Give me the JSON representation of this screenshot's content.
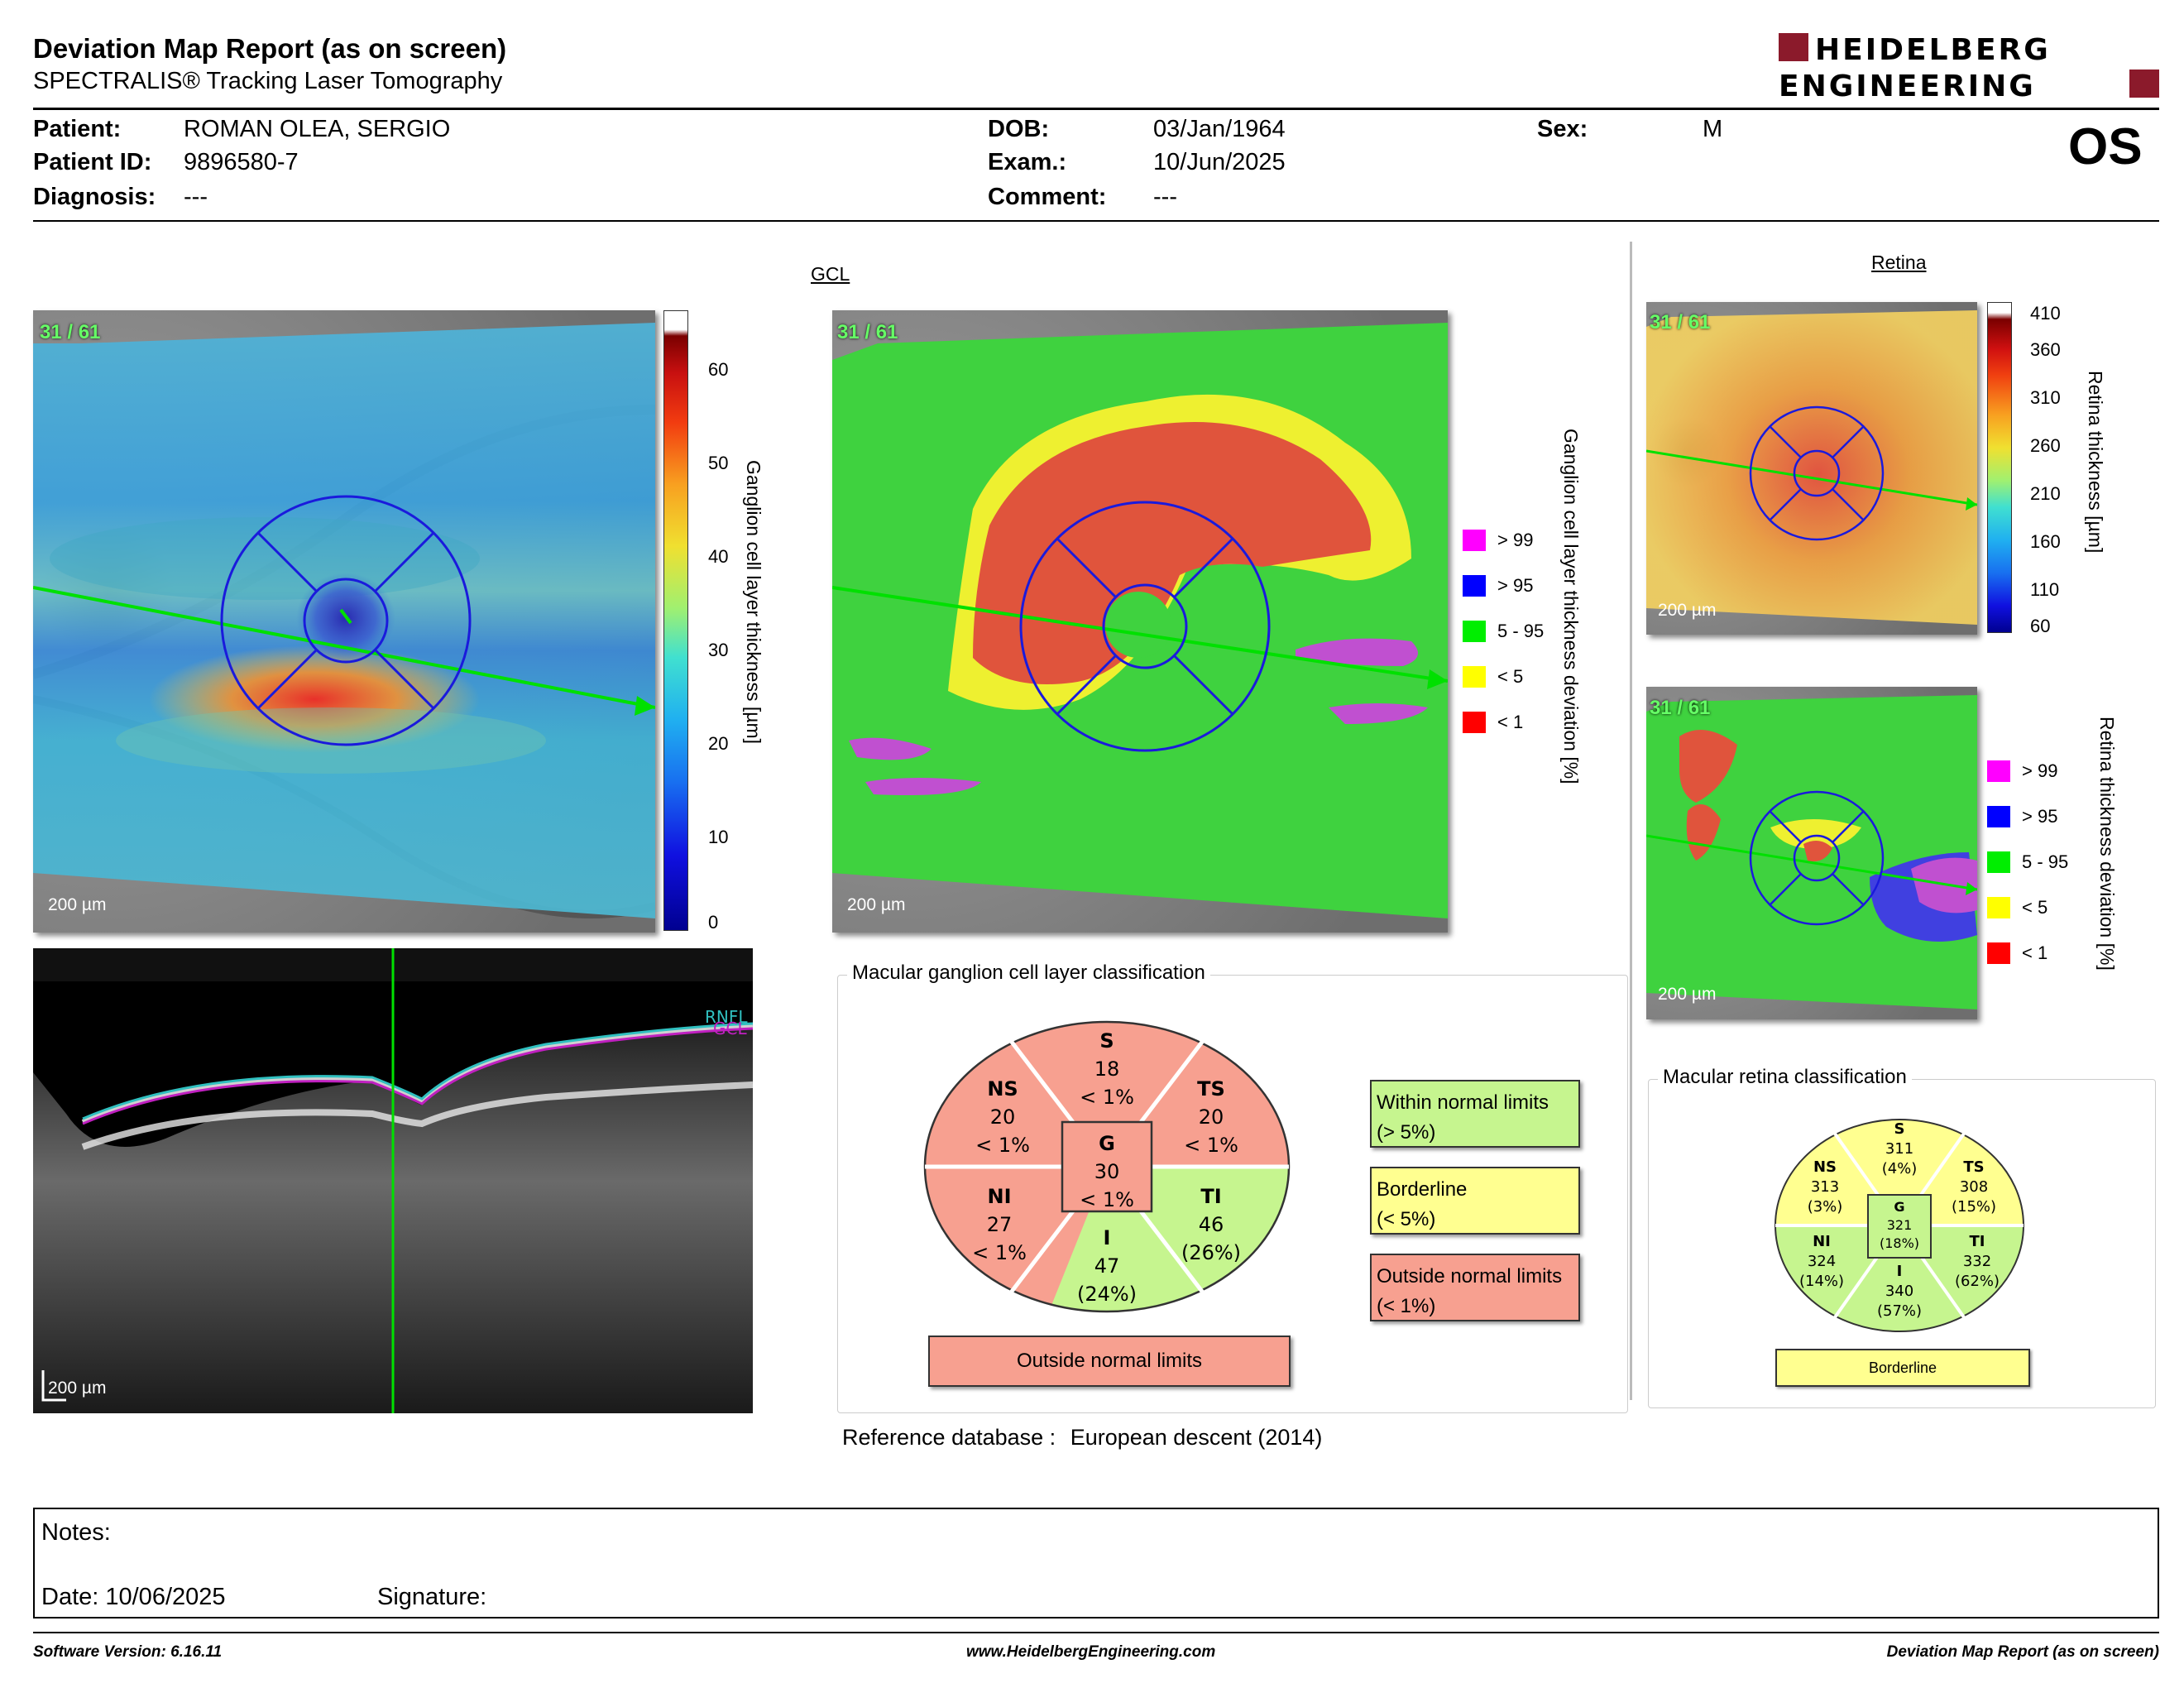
{
  "report": {
    "title": "Deviation Map Report (as on screen)",
    "subtitle": "SPECTRALIS® Tracking Laser Tomography",
    "logo_line1": "HEIDELBERG",
    "logo_line2": "ENGINEERING",
    "eye": "OS"
  },
  "patient": {
    "patient_label": "Patient:",
    "patient": "ROMAN OLEA, SERGIO",
    "id_label": "Patient ID:",
    "id": "9896580-7",
    "diag_label": "Diagnosis:",
    "diagnosis": "---",
    "dob_label": "DOB:",
    "dob": "03/Jan/1964",
    "exam_label": "Exam.:",
    "exam": "10/Jun/2025",
    "comment_label": "Comment:",
    "comment": "---",
    "sex_label": "Sex:",
    "sex": "M"
  },
  "gcl": {
    "section": "GCL",
    "scan_count": "31 / 61",
    "scale": "200 µm",
    "thickness_axis": "Ganglion cell layer thickness [µm]",
    "thickness_ticks": [
      "60",
      "50",
      "40",
      "30",
      "20",
      "10",
      "0"
    ],
    "deviation_axis": "Ganglion cell layer thickness deviation [%]",
    "oct_labels": [
      "RNFL",
      "GCL"
    ]
  },
  "retina": {
    "section": "Retina",
    "scan_count": "31 / 61",
    "scale": "200 µm",
    "thickness_axis": "Retina thickness [µm]",
    "thickness_ticks": [
      "410",
      "360",
      "310",
      "260",
      "210",
      "160",
      "110",
      "60"
    ],
    "deviation_axis": "Retina thickness deviation [%]"
  },
  "legend": [
    {
      "label": "> 99",
      "color": "#ff00ff"
    },
    {
      "label": "> 95",
      "color": "#0000ff"
    },
    {
      "label": "5 - 95",
      "color": "#00ee00"
    },
    {
      "label": "< 5",
      "color": "#ffff00"
    },
    {
      "label": "< 1",
      "color": "#ff0000"
    }
  ],
  "gcl_classification": {
    "title": "Macular ganglion cell layer classification",
    "sectors": {
      "S": [
        "S",
        "18",
        "< 1%"
      ],
      "NS": [
        "NS",
        "20",
        "< 1%"
      ],
      "TS": [
        "TS",
        "20",
        "< 1%"
      ],
      "G": [
        "G",
        "30",
        "< 1%"
      ],
      "NI": [
        "NI",
        "27",
        "< 1%"
      ],
      "TI": [
        "TI",
        "46",
        "(26%)"
      ],
      "I": [
        "I",
        "47",
        "(24%)"
      ]
    },
    "result": "Outside normal limits"
  },
  "categories": [
    {
      "label": "Within normal limits",
      "range": "(> 5%)",
      "color": "#c6f58f"
    },
    {
      "label": "Borderline",
      "range": "(< 5%)",
      "color": "#ffff90"
    },
    {
      "label": "Outside normal limits",
      "range": "(< 1%)",
      "color": "#f7a090"
    }
  ],
  "reference": {
    "label": "Reference database :",
    "value": "European descent (2014)"
  },
  "retina_classification": {
    "title": "Macular retina classification",
    "sectors": {
      "S": [
        "S",
        "311",
        "(4%)"
      ],
      "NS": [
        "NS",
        "313",
        "(3%)"
      ],
      "TS": [
        "TS",
        "308",
        "(15%)"
      ],
      "G": [
        "G",
        "321",
        "(18%)"
      ],
      "NI": [
        "NI",
        "324",
        "(14%)"
      ],
      "TI": [
        "TI",
        "332",
        "(62%)"
      ],
      "I": [
        "I",
        "340",
        "(57%)"
      ]
    },
    "result": "Borderline"
  },
  "notes": {
    "notes_label": "Notes:",
    "date_label": "Date: 10/06/2025",
    "signature_label": "Signature:"
  },
  "footer": {
    "software": "Software Version: 6.16.11",
    "website": "www.HeidelbergEngineering.com",
    "report": "Deviation Map Report (as on screen)"
  }
}
